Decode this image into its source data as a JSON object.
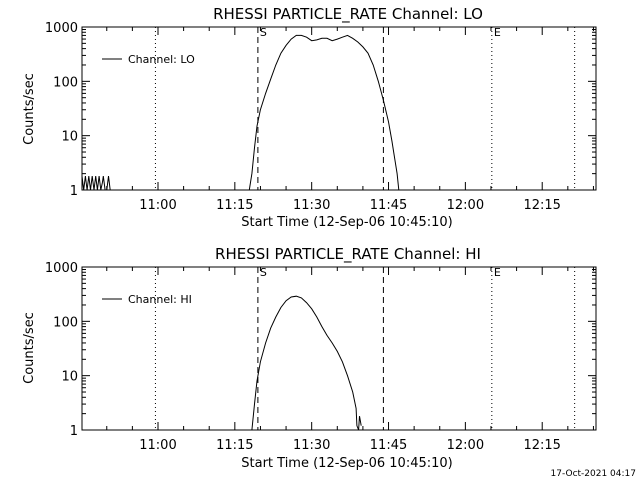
{
  "footer": {
    "timestamp": "17-Oct-2021 04:17"
  },
  "chart_data": [
    {
      "type": "line",
      "title": "RHESSI PARTICLE_RATE Channel: LO",
      "xlabel": "Start Time (12-Sep-06 10:45:10)",
      "ylabel": "Counts/sec",
      "yscale": "log",
      "ylim": [
        1,
        1000
      ],
      "yticks": [
        {
          "value": 1,
          "label": "1"
        },
        {
          "value": 10,
          "label": "10"
        },
        {
          "value": 100,
          "label": "100"
        },
        {
          "value": 1000,
          "label": "1000"
        }
      ],
      "xlim": [
        "10:45:10",
        "12:25:30"
      ],
      "xticks": [
        {
          "time": "11:00",
          "label": "11:00"
        },
        {
          "time": "11:15",
          "label": "11:15"
        },
        {
          "time": "11:30",
          "label": "11:30"
        },
        {
          "time": "11:45",
          "label": "11:45"
        },
        {
          "time": "12:00",
          "label": "12:00"
        },
        {
          "time": "12:15",
          "label": "12:15"
        }
      ],
      "legend": {
        "position": "top-left",
        "entries": [
          "Channel: LO"
        ]
      },
      "markers": [
        {
          "time": "10:59:30",
          "style": "dotted",
          "label": ""
        },
        {
          "time": "11:19:30",
          "style": "dashed",
          "label": "S"
        },
        {
          "time": "11:44:00",
          "style": "dashed",
          "label": ""
        },
        {
          "time": "12:05:10",
          "style": "dotted",
          "label": "E"
        },
        {
          "time": "12:21:20",
          "style": "dotted",
          "label": ""
        }
      ],
      "series": [
        {
          "name": "Channel: LO",
          "x": [
            "10:45:10",
            "10:45:30",
            "10:45:50",
            "10:46:10",
            "10:46:30",
            "10:46:50",
            "10:47:10",
            "10:47:30",
            "10:47:50",
            "10:48:10",
            "10:48:30",
            "10:48:50",
            "10:49:10",
            "10:49:20",
            "10:49:40",
            "10:50:00",
            "10:50:20",
            "10:50:40",
            "11:17:50",
            "11:18:20",
            "11:18:50",
            "11:19:20",
            "11:20:00",
            "11:21:00",
            "11:22:00",
            "11:23:00",
            "11:24:00",
            "11:25:00",
            "11:26:00",
            "11:27:00",
            "11:28:00",
            "11:29:00",
            "11:30:00",
            "11:31:00",
            "11:32:00",
            "11:33:00",
            "11:34:00",
            "11:35:00",
            "11:36:00",
            "11:37:00",
            "11:38:00",
            "11:39:00",
            "11:40:00",
            "11:41:00",
            "11:42:00",
            "11:43:00",
            "11:44:00",
            "11:45:00",
            "11:45:40",
            "11:46:10",
            "11:46:40",
            "11:47:00"
          ],
          "y": [
            1.8,
            1,
            1.8,
            1,
            1.8,
            1,
            1.8,
            1,
            1.8,
            1,
            1.8,
            1,
            1.4,
            1.8,
            1,
            1,
            1.8,
            1,
            1,
            2,
            6,
            15,
            30,
            60,
            110,
            200,
            330,
            460,
            600,
            700,
            700,
            650,
            560,
            580,
            620,
            620,
            560,
            600,
            650,
            700,
            620,
            530,
            430,
            330,
            200,
            100,
            45,
            18,
            8,
            4,
            2,
            1
          ]
        }
      ]
    },
    {
      "type": "line",
      "title": "RHESSI PARTICLE_RATE Channel: HI",
      "xlabel": "Start Time (12-Sep-06 10:45:10)",
      "ylabel": "Counts/sec",
      "yscale": "log",
      "ylim": [
        1,
        1000
      ],
      "yticks": [
        {
          "value": 1,
          "label": "1"
        },
        {
          "value": 10,
          "label": "10"
        },
        {
          "value": 100,
          "label": "100"
        },
        {
          "value": 1000,
          "label": "1000"
        }
      ],
      "xlim": [
        "10:45:10",
        "12:25:30"
      ],
      "xticks": [
        {
          "time": "11:00",
          "label": "11:00"
        },
        {
          "time": "11:15",
          "label": "11:15"
        },
        {
          "time": "11:30",
          "label": "11:30"
        },
        {
          "time": "11:45",
          "label": "11:45"
        },
        {
          "time": "12:00",
          "label": "12:00"
        },
        {
          "time": "12:15",
          "label": "12:15"
        }
      ],
      "legend": {
        "position": "top-left",
        "entries": [
          "Channel: HI"
        ]
      },
      "markers": [
        {
          "time": "10:59:30",
          "style": "dotted",
          "label": ""
        },
        {
          "time": "11:19:30",
          "style": "dashed",
          "label": "S"
        },
        {
          "time": "11:44:00",
          "style": "dashed",
          "label": ""
        },
        {
          "time": "12:05:10",
          "style": "dotted",
          "label": "E"
        },
        {
          "time": "12:21:20",
          "style": "dotted",
          "label": ""
        }
      ],
      "series": [
        {
          "name": "Channel: HI",
          "x": [
            "11:18:20",
            "11:18:50",
            "11:19:20",
            "11:20:00",
            "11:21:00",
            "11:22:00",
            "11:23:00",
            "11:24:00",
            "11:25:00",
            "11:26:00",
            "11:27:00",
            "11:28:00",
            "11:29:00",
            "11:30:00",
            "11:31:00",
            "11:32:00",
            "11:33:00",
            "11:34:00",
            "11:35:00",
            "11:36:00",
            "11:37:00",
            "11:38:00",
            "11:38:40",
            "11:38:50",
            "11:39:10",
            "11:39:20",
            "11:39:40"
          ],
          "y": [
            1,
            3,
            8,
            18,
            40,
            75,
            120,
            180,
            240,
            280,
            290,
            270,
            220,
            170,
            120,
            80,
            55,
            40,
            28,
            18,
            10,
            5,
            2.5,
            1.2,
            1,
            1.8,
            1.2
          ]
        }
      ]
    }
  ]
}
